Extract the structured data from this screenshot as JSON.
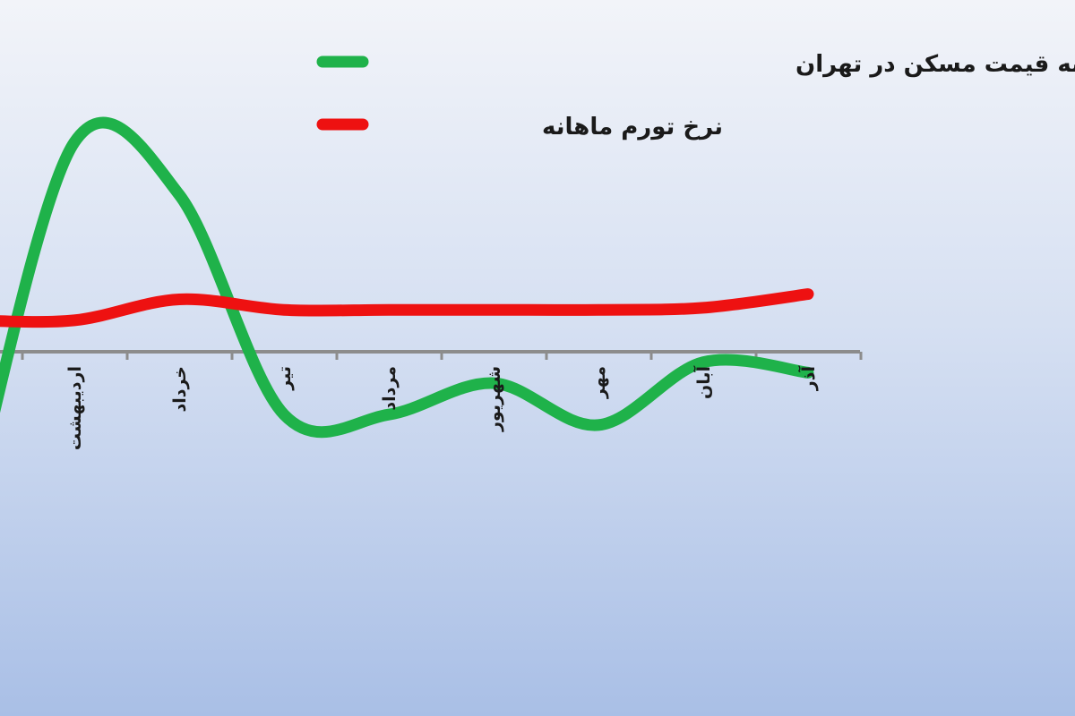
{
  "chart_data": {
    "type": "line",
    "categories": [
      "اردیبهشت",
      "خرداد",
      "تیر",
      "مرداد",
      "شهریور",
      "مهر",
      "آبان",
      "آذر"
    ],
    "series": [
      {
        "name": "نرخ رشد ماهانه قیمت مسکن در تهران",
        "color": "#1fb24a",
        "values": [
          20,
          15,
          -6,
          -6,
          -3,
          -7,
          -1,
          -2
        ]
      },
      {
        "name": "نرخ تورم ماهانه",
        "color": "#ee1111",
        "values": [
          3,
          5,
          4,
          4,
          4,
          4,
          4.2,
          5.5
        ]
      }
    ],
    "legend_position": "top",
    "grid": false
  }
}
